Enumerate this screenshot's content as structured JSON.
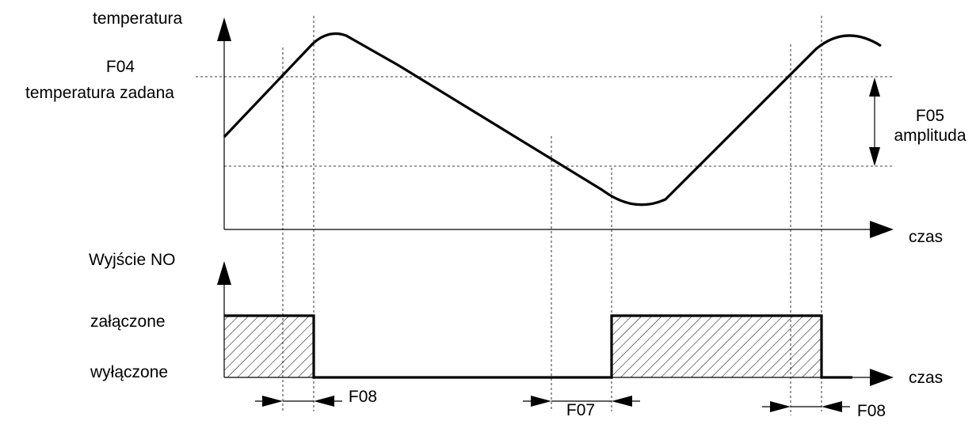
{
  "top_chart": {
    "y_axis_label": "temperatura",
    "x_axis_label": "czas",
    "setpoint_code": "F04",
    "setpoint_label": "temperatura zadana",
    "amplitude_code": "F05",
    "amplitude_label": "amplituda"
  },
  "bottom_chart": {
    "y_axis_label": "Wyjście NO",
    "x_axis_label": "czas",
    "level_on": "załączone",
    "level_off": "wyłączone"
  },
  "delays": {
    "first": "F08",
    "second": "F07",
    "third": "F08"
  },
  "colors": {
    "line": "#000000",
    "background": "#ffffff"
  }
}
